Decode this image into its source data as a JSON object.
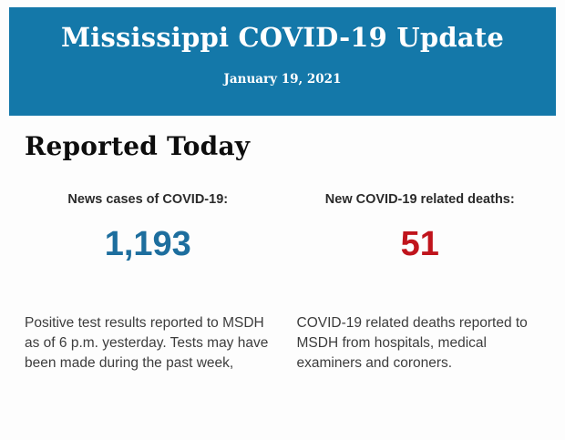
{
  "banner": {
    "title": "Mississippi COVID-19 Update",
    "date": "January 19, 2021",
    "background_color": "#1478a9",
    "text_color": "#ffffff"
  },
  "content": {
    "heading": "Reported Today",
    "stats": [
      {
        "label": "News cases of COVID-19:",
        "value": "1,193",
        "value_color": "#1d6e9e",
        "description": "Positive test results reported to MSDH as of 6 p.m. yesterday. Tests may have been made during the past week,"
      },
      {
        "label": "New COVID-19 related deaths:",
        "value": "51",
        "value_color": "#c0141c",
        "description": "COVID-19 related deaths reported to MSDH from hospitals, medical examiners and coroners."
      }
    ]
  }
}
